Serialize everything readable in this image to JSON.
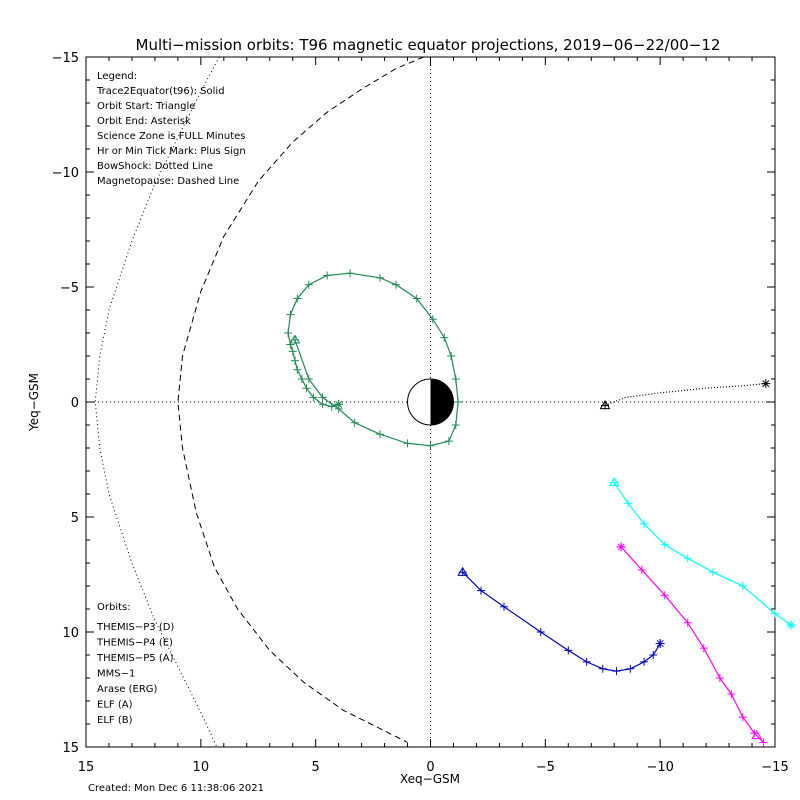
{
  "chart_data": {
    "type": "scatter",
    "title": "Multi−mission orbits: T96 magnetic equator projections, 2019−06−22/00−12",
    "xlabel": "Xeq−GSM",
    "ylabel": "Yeq−GSM",
    "xlim": [
      15,
      -15
    ],
    "ylim": [
      -15,
      15
    ],
    "x_ticks": [
      "15",
      "10",
      "5",
      "0",
      "−5",
      "−10",
      "−15"
    ],
    "y_ticks": [
      "−15",
      "−10",
      "−5",
      "0",
      "5",
      "10",
      "15"
    ],
    "created": "Created: Mon Dec  6 11:38:06 2021",
    "legend_notes": [
      "Legend:",
      "Trace2Equator(t96): Solid",
      "Orbit Start: Triangle",
      "Orbit End: Asterisk",
      "Science Zone is FULL Minutes",
      "Hr or Min Tick Mark: Plus Sign",
      "BowShock: Dotted Line",
      "Magnetopause: Dashed Line"
    ],
    "orbits_header": "Orbits:",
    "series": [
      {
        "name": "THEMIS−P3 (D)",
        "color": "#00ffff",
        "x": [
          -8.0,
          -8.6,
          -9.3,
          -10.2,
          -11.2,
          -12.3,
          -13.6,
          -15.0,
          -15.7
        ],
        "y": [
          3.5,
          4.4,
          5.3,
          6.2,
          6.8,
          7.4,
          8.0,
          9.2,
          9.7
        ],
        "start": [
          -8.0,
          3.5
        ],
        "end": [
          -15.7,
          9.7
        ]
      },
      {
        "name": "THEMIS−P4 (E)",
        "color": "#0000bb",
        "x": [
          -1.4,
          -2.2,
          -3.2,
          -4.8,
          -6.0,
          -6.8,
          -7.5,
          -8.1,
          -8.7,
          -9.3,
          -9.7,
          -10.0
        ],
        "y": [
          7.4,
          8.2,
          8.9,
          10.0,
          10.8,
          11.3,
          11.6,
          11.7,
          11.6,
          11.3,
          11.0,
          10.5
        ],
        "start": [
          -1.4,
          7.4
        ],
        "end": [
          -10.0,
          10.5
        ]
      },
      {
        "name": "THEMIS−P5 (A)",
        "color": "#ff00ff",
        "x": [
          -8.3,
          -9.2,
          -10.2,
          -11.2,
          -11.9,
          -12.6,
          -13.1,
          -13.6,
          -14.1,
          -14.5
        ],
        "y": [
          6.3,
          7.3,
          8.4,
          9.6,
          10.7,
          12.0,
          12.7,
          13.7,
          14.4,
          14.8
        ],
        "start": [
          -14.2,
          14.5
        ],
        "end": [
          -8.3,
          6.3
        ]
      },
      {
        "name": "MMS−1",
        "color": "#000000",
        "x": [
          -7.6,
          -8.5,
          -10.0,
          -12.0,
          -13.5,
          -14.6
        ],
        "y": [
          0.15,
          -0.2,
          -0.4,
          -0.6,
          -0.7,
          -0.8
        ],
        "start": [
          -7.6,
          0.15
        ],
        "end": [
          -14.6,
          -0.8
        ]
      },
      {
        "name": "Arase (ERG)",
        "color": "#228b57",
        "x": [
          5.9,
          5.3,
          4.7,
          4.0,
          3.3,
          2.2,
          1.0,
          0.0,
          -0.8,
          -1.1,
          -1.2,
          -1.1,
          -0.9,
          -0.6,
          -0.1,
          0.6,
          1.5,
          2.2,
          3.5,
          4.5,
          5.3,
          5.8,
          6.1,
          6.2,
          6.1,
          6.0,
          5.9,
          5.8,
          5.6,
          5.4,
          5.1,
          4.7,
          4.3,
          4.0
        ],
        "y": [
          -2.7,
          -1.0,
          -0.2,
          0.3,
          0.9,
          1.4,
          1.8,
          1.9,
          1.7,
          1.0,
          0.0,
          -1.0,
          -2.0,
          -2.8,
          -3.6,
          -4.5,
          -5.1,
          -5.4,
          -5.6,
          -5.5,
          -5.1,
          -4.5,
          -3.8,
          -3.0,
          -2.5,
          -2.2,
          -1.8,
          -1.4,
          -1.0,
          -0.6,
          -0.2,
          0.1,
          0.2,
          0.1
        ],
        "start": [
          5.9,
          -2.7
        ],
        "end": [
          4.0,
          0.1
        ]
      },
      {
        "name": "ELF (A)",
        "color": "#4488ff",
        "x": [],
        "y": []
      },
      {
        "name": "ELF (B)",
        "color": "#dd0000",
        "x": [],
        "y": []
      }
    ],
    "bow_shock": {
      "x": [
        9.2,
        10.0,
        11.0,
        12.0,
        13.0,
        14.0,
        14.4,
        14.6,
        14.4,
        14.0,
        13.0,
        12.0,
        11.0,
        10.0,
        9.3
      ],
      "y": [
        -15.0,
        -13.5,
        -11.5,
        -9.5,
        -7.0,
        -4.0,
        -2.0,
        0.0,
        2.0,
        4.0,
        7.0,
        9.5,
        11.5,
        13.5,
        15.0
      ]
    },
    "magnetopause": {
      "x": [
        0.3,
        1.5,
        3.0,
        4.5,
        6.0,
        7.5,
        9.0,
        10.0,
        10.8,
        11.0,
        10.8,
        10.2,
        9.4,
        8.4,
        7.0,
        5.5,
        3.8,
        2.0,
        1.0
      ],
      "y": [
        -15.0,
        -14.5,
        -13.6,
        -12.6,
        -11.3,
        -9.6,
        -7.2,
        -4.8,
        -2.0,
        0.0,
        2.0,
        4.8,
        7.2,
        9.0,
        10.8,
        12.2,
        13.4,
        14.3,
        14.8
      ]
    }
  }
}
